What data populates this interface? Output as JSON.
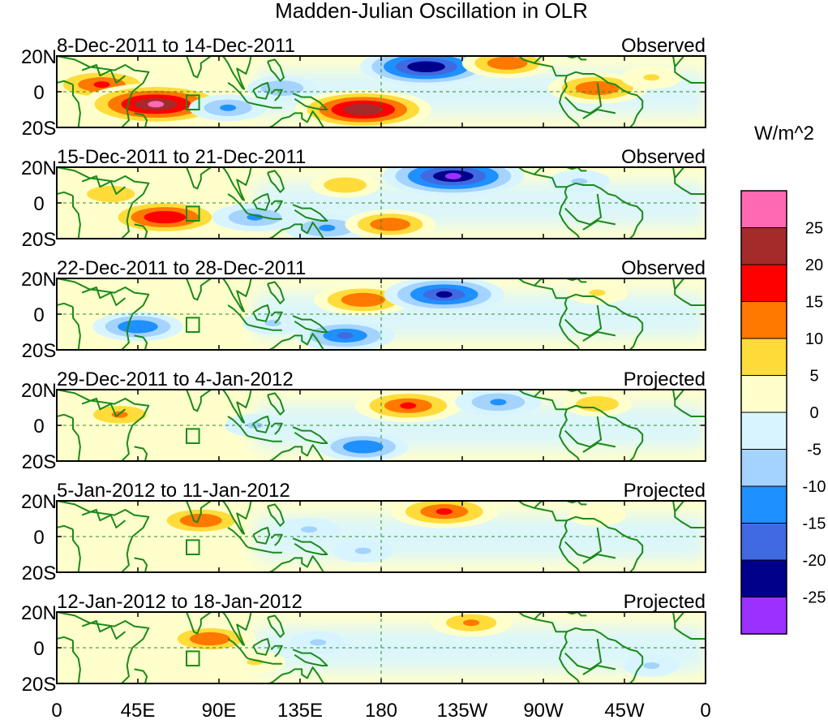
{
  "chart_data": {
    "type": "heatmap",
    "title": "Madden-Julian Oscillation in OLR",
    "units_label": "W/m^2",
    "x_ticks": [
      "0",
      "45E",
      "90E",
      "135E",
      "180",
      "135W",
      "90W",
      "45W",
      "0"
    ],
    "y_ticks": [
      "20N",
      "0",
      "20S"
    ],
    "lon_range": [
      0,
      360
    ],
    "lat_range": [
      -20,
      20
    ],
    "colorbar": {
      "levels": [
        "-25",
        "-20",
        "-15",
        "-10",
        "-5",
        "0",
        "5",
        "10",
        "15",
        "20",
        "25"
      ],
      "colors": [
        "#9b30ff",
        "#00008b",
        "#4169e1",
        "#1e90ff",
        "#a4d3ff",
        "#d8f5ff",
        "#ffffcc",
        "#ffdc3a",
        "#ff7800",
        "#ff0000",
        "#a52a2a",
        "#ff69b4"
      ]
    },
    "panels": [
      {
        "period": "8-Dec-2011 to 14-Dec-2011",
        "status": "Observed",
        "anomalies": [
          {
            "lon": 25,
            "lat": 4,
            "value": 17
          },
          {
            "lon": 55,
            "lat": -7,
            "value": 27
          },
          {
            "lon": 95,
            "lat": -9,
            "value": -10
          },
          {
            "lon": 125,
            "lat": 2,
            "value": -8
          },
          {
            "lon": 170,
            "lat": -10,
            "value": 24
          },
          {
            "lon": 205,
            "lat": 14,
            "value": -23
          },
          {
            "lon": 250,
            "lat": 16,
            "value": 13
          },
          {
            "lon": 300,
            "lat": 2,
            "value": 15
          },
          {
            "lon": 330,
            "lat": 8,
            "value": 6
          }
        ]
      },
      {
        "period": "15-Dec-2011 to 21-Dec-2011",
        "status": "Observed",
        "anomalies": [
          {
            "lon": 30,
            "lat": 5,
            "value": 10
          },
          {
            "lon": 60,
            "lat": -8,
            "value": 20
          },
          {
            "lon": 110,
            "lat": -8,
            "value": -12
          },
          {
            "lon": 150,
            "lat": -14,
            "value": -12
          },
          {
            "lon": 185,
            "lat": -12,
            "value": 13
          },
          {
            "lon": 220,
            "lat": 15,
            "value": -25
          },
          {
            "lon": 160,
            "lat": 10,
            "value": 8
          },
          {
            "lon": 290,
            "lat": 12,
            "value": -6
          }
        ]
      },
      {
        "period": "22-Dec-2011 to 28-Dec-2011",
        "status": "Observed",
        "anomalies": [
          {
            "lon": 45,
            "lat": -7,
            "value": -13
          },
          {
            "lon": 170,
            "lat": 8,
            "value": 15
          },
          {
            "lon": 215,
            "lat": 11,
            "value": -20
          },
          {
            "lon": 160,
            "lat": -12,
            "value": -15
          },
          {
            "lon": 120,
            "lat": -5,
            "value": -6
          },
          {
            "lon": 300,
            "lat": 12,
            "value": 6
          }
        ]
      },
      {
        "period": "29-Dec-2011 to 4-Jan-2012",
        "status": "Projected",
        "anomalies": [
          {
            "lon": 35,
            "lat": 6,
            "value": 12
          },
          {
            "lon": 195,
            "lat": 11,
            "value": 17
          },
          {
            "lon": 245,
            "lat": 13,
            "value": -12
          },
          {
            "lon": 170,
            "lat": -12,
            "value": -13
          },
          {
            "lon": 110,
            "lat": 0,
            "value": -6
          },
          {
            "lon": 300,
            "lat": 12,
            "value": 8
          }
        ]
      },
      {
        "period": "5-Jan-2012 to 11-Jan-2012",
        "status": "Projected",
        "anomalies": [
          {
            "lon": 80,
            "lat": 9,
            "value": 14
          },
          {
            "lon": 215,
            "lat": 14,
            "value": 17
          },
          {
            "lon": 140,
            "lat": 4,
            "value": -6
          },
          {
            "lon": 170,
            "lat": -8,
            "value": -6
          },
          {
            "lon": 300,
            "lat": 12,
            "value": 5
          }
        ]
      },
      {
        "period": "12-Jan-2012 to 18-Jan-2012",
        "status": "Projected",
        "anomalies": [
          {
            "lon": 85,
            "lat": 5,
            "value": 13
          },
          {
            "lon": 110,
            "lat": -8,
            "value": 6
          },
          {
            "lon": 230,
            "lat": 14,
            "value": 11
          },
          {
            "lon": 145,
            "lat": 3,
            "value": -5
          },
          {
            "lon": 330,
            "lat": -10,
            "value": -5
          }
        ]
      }
    ]
  }
}
